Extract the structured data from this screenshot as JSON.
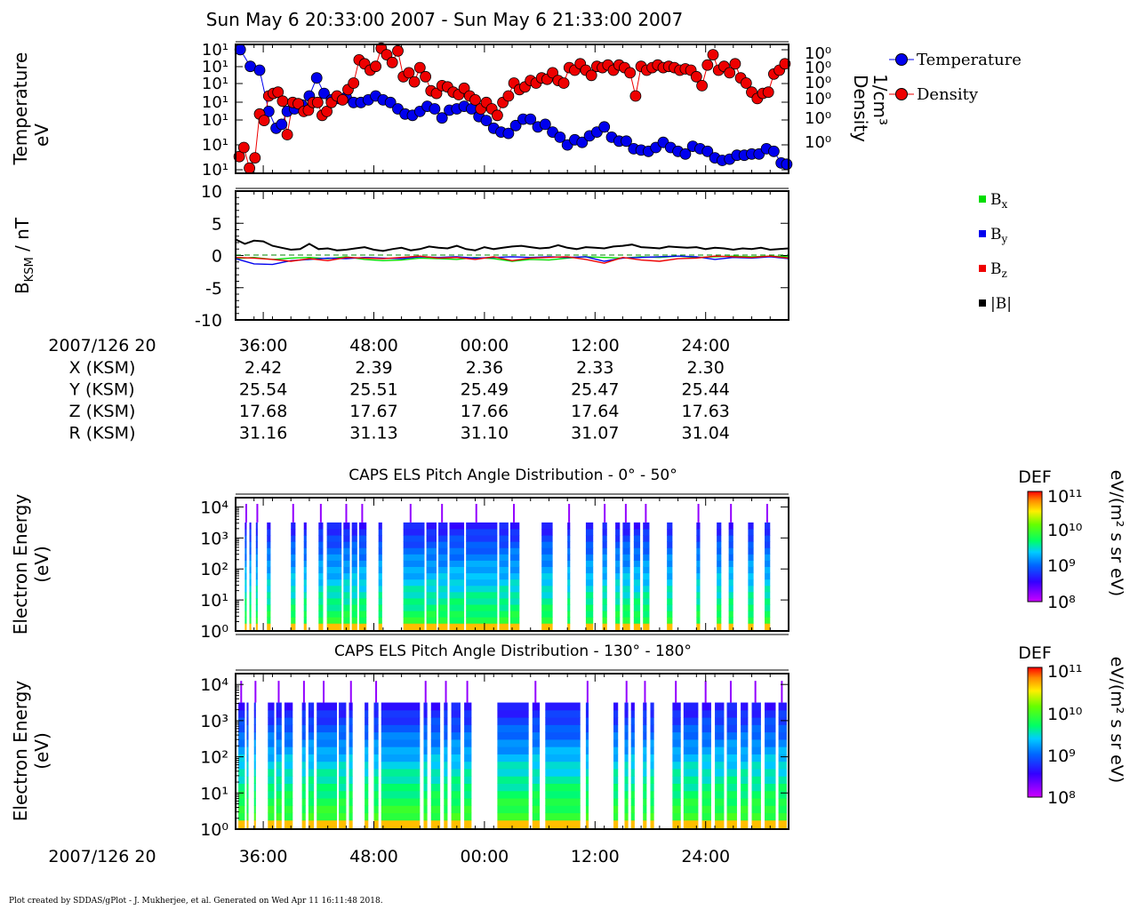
{
  "title": "Sun May 6 20:33:00 2007 - Sun May 6 21:33:00 2007",
  "footer": "Plot created by SDDAS/gPlot - J. Mukherjee, et al.  Generated on Wed Apr 11 16:11:48 2018.",
  "time_axis": {
    "date_label": "2007/126 20",
    "ticks": [
      "36:00",
      "48:00",
      "00:00",
      "12:00",
      "24:00"
    ],
    "tick_minutes": [
      3,
      15,
      27,
      39,
      51
    ],
    "range_minutes": [
      0,
      60
    ]
  },
  "ephemeris": {
    "rows": [
      {
        "label": "X (KSM)",
        "values": [
          "2.42",
          "2.39",
          "2.36",
          "2.33",
          "2.30"
        ]
      },
      {
        "label": "Y (KSM)",
        "values": [
          "25.54",
          "25.51",
          "25.49",
          "25.47",
          "25.44"
        ]
      },
      {
        "label": "Z (KSM)",
        "values": [
          "17.68",
          "17.67",
          "17.66",
          "17.64",
          "17.63"
        ]
      },
      {
        "label": "R (KSM)",
        "values": [
          "31.16",
          "31.13",
          "31.10",
          "31.07",
          "31.04"
        ]
      }
    ]
  },
  "colors": {
    "temperature": "#0000ee",
    "density": "#ee0000",
    "bx": "#00dd00",
    "by": "#0000ee",
    "bz": "#ee0000",
    "bmag": "#000000"
  },
  "chart_data": [
    {
      "type": "scatter",
      "ylabel_lines": [
        "Temperature",
        "eV"
      ],
      "y2label_lines": [
        "Density",
        "1/cm³"
      ],
      "y_tick_labels": [
        "10¹",
        "10¹",
        "10¹",
        "10¹",
        "10¹",
        "10¹",
        "10¹"
      ],
      "y2_tick_labels": [
        "10⁰",
        "10⁰",
        "10⁰",
        "10⁰",
        "10⁰",
        "10⁰"
      ],
      "ylim": [
        0,
        1
      ],
      "legend": [
        "Temperature",
        "Density"
      ],
      "series": [
        {
          "name": "Temperature",
          "x": [
            0.5,
            1.6,
            2.6,
            3.6,
            4.4,
            5.0,
            5.6,
            6.4,
            7.2,
            8.0,
            8.8,
            9.6,
            10.4,
            11.2,
            12.0,
            12.8,
            13.6,
            14.4,
            15.2,
            16.0,
            16.8,
            17.6,
            18.4,
            19.2,
            20.0,
            20.8,
            21.6,
            22.4,
            23.2,
            24.0,
            24.8,
            25.6,
            26.4,
            27.2,
            28.0,
            28.8,
            29.6,
            30.4,
            31.2,
            32.0,
            32.8,
            33.6,
            34.4,
            35.2,
            36.0,
            36.8,
            37.6,
            38.4,
            39.2,
            40.0,
            40.8,
            41.6,
            42.4,
            43.2,
            44.0,
            44.8,
            45.6,
            46.4,
            47.2,
            48.0,
            48.8,
            49.6,
            50.4,
            51.2,
            52.0,
            52.8,
            53.6,
            54.4,
            55.2,
            56.0,
            56.8,
            57.6,
            58.4,
            59.2,
            59.8
          ],
          "y": [
            0.96,
            0.83,
            0.8,
            0.48,
            0.35,
            0.38,
            0.48,
            0.5,
            0.53,
            0.6,
            0.74,
            0.62,
            0.57,
            0.58,
            0.59,
            0.55,
            0.55,
            0.57,
            0.6,
            0.57,
            0.55,
            0.5,
            0.46,
            0.45,
            0.48,
            0.52,
            0.5,
            0.43,
            0.49,
            0.5,
            0.52,
            0.5,
            0.44,
            0.41,
            0.35,
            0.32,
            0.31,
            0.37,
            0.42,
            0.42,
            0.36,
            0.38,
            0.32,
            0.28,
            0.22,
            0.26,
            0.24,
            0.29,
            0.32,
            0.36,
            0.28,
            0.25,
            0.25,
            0.19,
            0.18,
            0.17,
            0.2,
            0.24,
            0.2,
            0.17,
            0.15,
            0.21,
            0.19,
            0.17,
            0.12,
            0.1,
            0.11,
            0.14,
            0.14,
            0.15,
            0.15,
            0.19,
            0.17,
            0.08,
            0.07
          ]
        },
        {
          "name": "Density",
          "x": [
            0.4,
            0.9,
            1.5,
            2.1,
            2.6,
            3.1,
            3.6,
            4.1,
            4.6,
            5.1,
            5.6,
            6.2,
            6.8,
            7.4,
            7.9,
            8.4,
            8.9,
            9.4,
            9.9,
            10.4,
            11.0,
            11.6,
            12.2,
            12.8,
            13.4,
            14.0,
            14.6,
            15.2,
            15.8,
            16.4,
            17.0,
            17.6,
            18.2,
            18.8,
            19.4,
            20.0,
            20.6,
            21.2,
            21.8,
            22.4,
            23.0,
            23.6,
            24.2,
            24.8,
            25.4,
            26.0,
            26.6,
            27.2,
            27.8,
            28.4,
            29.0,
            29.6,
            30.2,
            30.8,
            31.4,
            32.0,
            32.6,
            33.2,
            33.8,
            34.4,
            35.0,
            35.6,
            36.2,
            36.8,
            37.4,
            38.0,
            38.6,
            39.2,
            39.8,
            40.4,
            41.0,
            41.6,
            42.2,
            42.8,
            43.4,
            44.0,
            44.6,
            45.2,
            45.8,
            46.4,
            47.0,
            47.6,
            48.2,
            48.8,
            49.4,
            50.0,
            50.6,
            51.2,
            51.8,
            52.4,
            53.0,
            53.6,
            54.2,
            54.8,
            55.4,
            56.0,
            56.6,
            57.2,
            57.8,
            58.4,
            59.0,
            59.6
          ],
          "y": [
            0.13,
            0.2,
            0.04,
            0.12,
            0.46,
            0.41,
            0.6,
            0.62,
            0.63,
            0.56,
            0.3,
            0.55,
            0.54,
            0.48,
            0.49,
            0.55,
            0.55,
            0.45,
            0.48,
            0.55,
            0.6,
            0.57,
            0.65,
            0.7,
            0.88,
            0.85,
            0.8,
            0.83,
            0.97,
            0.92,
            0.86,
            0.95,
            0.75,
            0.78,
            0.71,
            0.82,
            0.75,
            0.64,
            0.62,
            0.68,
            0.67,
            0.63,
            0.61,
            0.66,
            0.6,
            0.57,
            0.5,
            0.55,
            0.5,
            0.45,
            0.55,
            0.6,
            0.7,
            0.65,
            0.67,
            0.72,
            0.7,
            0.74,
            0.73,
            0.78,
            0.72,
            0.7,
            0.82,
            0.8,
            0.85,
            0.8,
            0.76,
            0.83,
            0.82,
            0.84,
            0.8,
            0.84,
            0.82,
            0.78,
            0.6,
            0.83,
            0.8,
            0.82,
            0.84,
            0.82,
            0.83,
            0.82,
            0.8,
            0.81,
            0.8,
            0.75,
            0.68,
            0.84,
            0.92,
            0.8,
            0.83,
            0.78,
            0.85,
            0.74,
            0.7,
            0.63,
            0.58,
            0.62,
            0.63,
            0.77,
            0.8,
            0.85
          ]
        }
      ]
    },
    {
      "type": "line",
      "ylabel_main": "B",
      "ylabel_sub": "KSM",
      "ylabel_rest": " / nT",
      "ylim": [
        -10,
        10
      ],
      "y_ticks": [
        -10,
        -5,
        0,
        5,
        10
      ],
      "legend": [
        "B",
        "B",
        "B",
        "|B|"
      ],
      "legend_subs": [
        "x",
        "y",
        "z",
        ""
      ],
      "series": [
        {
          "name": "Bx",
          "x": [
            0,
            2,
            4,
            6,
            8,
            10,
            12,
            14,
            16,
            18,
            20,
            22,
            24,
            26,
            28,
            30,
            32,
            34,
            36,
            38,
            40,
            42,
            44,
            46,
            48,
            50,
            52,
            54,
            56,
            58,
            60
          ],
          "y": [
            -0.5,
            -0.3,
            -0.6,
            -0.4,
            -0.3,
            -0.5,
            -0.2,
            -0.6,
            -0.8,
            -0.7,
            -0.4,
            -0.5,
            -0.6,
            -0.3,
            -0.5,
            -0.9,
            -0.6,
            -0.7,
            -0.4,
            -0.2,
            -0.3,
            -0.4,
            -0.2,
            -0.3,
            -0.1,
            -0.3,
            -0.2,
            -0.1,
            -0.2,
            -0.1,
            -0.2
          ]
        },
        {
          "name": "By",
          "x": [
            0,
            2,
            4,
            6,
            8,
            10,
            12,
            14,
            16,
            18,
            20,
            22,
            24,
            26,
            28,
            30,
            32,
            34,
            36,
            38,
            40,
            42,
            44,
            46,
            48,
            50,
            52,
            54,
            56,
            58,
            60
          ],
          "y": [
            -0.5,
            -1.3,
            -1.4,
            -0.8,
            -0.6,
            -0.4,
            -0.5,
            -0.3,
            -0.4,
            -0.5,
            -0.2,
            -0.3,
            -0.2,
            -0.4,
            -0.3,
            -0.2,
            -0.3,
            -0.2,
            -0.3,
            -0.2,
            -0.9,
            -0.4,
            -0.3,
            -0.2,
            -0.1,
            -0.2,
            -0.6,
            -0.3,
            -0.4,
            -0.2,
            -0.5
          ]
        },
        {
          "name": "Bz",
          "x": [
            0,
            2,
            4,
            6,
            8,
            10,
            12,
            14,
            16,
            18,
            20,
            22,
            24,
            26,
            28,
            30,
            32,
            34,
            36,
            38,
            40,
            42,
            44,
            46,
            48,
            50,
            52,
            54,
            56,
            58,
            60
          ],
          "y": [
            -0.3,
            -0.4,
            -0.6,
            -0.9,
            -0.5,
            -0.8,
            -0.3,
            -0.4,
            -0.5,
            -0.3,
            -0.1,
            -0.4,
            -0.3,
            -0.6,
            -0.2,
            -0.8,
            -0.4,
            -0.3,
            -0.2,
            -0.6,
            -1.2,
            -0.3,
            -0.7,
            -0.9,
            -0.5,
            -0.4,
            -0.1,
            -0.2,
            -0.3,
            -0.1,
            -0.4
          ]
        },
        {
          "name": "|B|",
          "x": [
            0,
            1,
            2,
            3,
            4,
            5,
            6,
            7,
            8,
            9,
            10,
            11,
            12,
            13,
            14,
            15,
            16,
            17,
            18,
            19,
            20,
            21,
            22,
            23,
            24,
            25,
            26,
            27,
            28,
            29,
            30,
            31,
            32,
            33,
            34,
            35,
            36,
            37,
            38,
            39,
            40,
            41,
            42,
            43,
            44,
            45,
            46,
            47,
            48,
            49,
            50,
            51,
            52,
            53,
            54,
            55,
            56,
            57,
            58,
            59,
            60
          ],
          "y": [
            2.5,
            1.8,
            2.3,
            2.2,
            1.5,
            1.2,
            0.9,
            1.0,
            1.8,
            1.0,
            1.1,
            0.8,
            0.9,
            1.1,
            1.3,
            0.9,
            0.7,
            1.0,
            1.2,
            0.8,
            1.0,
            1.4,
            1.2,
            1.1,
            1.5,
            1.0,
            0.8,
            1.3,
            1.0,
            1.2,
            1.4,
            1.5,
            1.3,
            1.1,
            1.2,
            1.6,
            1.2,
            1.0,
            1.3,
            1.2,
            1.1,
            1.4,
            1.5,
            1.7,
            1.3,
            1.2,
            1.1,
            1.4,
            1.3,
            1.2,
            1.3,
            1.0,
            1.2,
            1.1,
            0.9,
            1.1,
            1.0,
            1.2,
            0.9,
            1.0,
            1.1
          ]
        }
      ]
    },
    {
      "type": "heatmap",
      "title": "CAPS ELS Pitch Angle Distribution - 0° - 50°",
      "ylabel_lines": [
        "Electron Energy",
        "(eV)"
      ],
      "y_tick_labels": [
        "10⁰",
        "10¹",
        "10²",
        "10³",
        "10⁴"
      ],
      "ylim_log10": [
        0,
        4.3
      ],
      "active_intervals": [
        [
          1.0,
          1.2
        ],
        [
          1.5,
          1.7
        ],
        [
          2.2,
          2.4
        ],
        [
          3.4,
          3.8
        ],
        [
          6.0,
          6.5
        ],
        [
          7.4,
          7.7
        ],
        [
          9.0,
          9.5
        ],
        [
          9.9,
          11.5
        ],
        [
          11.7,
          12.4
        ],
        [
          12.6,
          13.2
        ],
        [
          13.4,
          14.2
        ],
        [
          15.5,
          15.9
        ],
        [
          18.2,
          20.5
        ],
        [
          20.7,
          21.8
        ],
        [
          22.0,
          23.0
        ],
        [
          23.2,
          24.8
        ],
        [
          25.0,
          28.4
        ],
        [
          28.6,
          29.6
        ],
        [
          29.8,
          30.8
        ],
        [
          33.2,
          34.4
        ],
        [
          36.0,
          36.3
        ],
        [
          38.0,
          38.8
        ],
        [
          39.8,
          40.3
        ],
        [
          41.2,
          41.7
        ],
        [
          42.0,
          42.8
        ],
        [
          43.2,
          43.9
        ],
        [
          44.2,
          44.9
        ],
        [
          46.8,
          47.4
        ],
        [
          50.0,
          50.4
        ],
        [
          52.2,
          52.7
        ],
        [
          53.5,
          54.0
        ],
        [
          55.6,
          56.2
        ],
        [
          57.4,
          58.0
        ]
      ],
      "spectrum_log10_flux": [
        9.9,
        9.6,
        9.3,
        9.0,
        8.6
      ],
      "colorbar_label": "DEF",
      "colorbar_unit": "eV/(m² s sr eV)",
      "colorbar_ticks": [
        "10¹¹",
        "10¹⁰",
        "10⁹",
        "10⁸"
      ]
    },
    {
      "type": "heatmap",
      "title": "CAPS ELS Pitch Angle Distribution - 130° - 180°",
      "ylabel_lines": [
        "Electron Energy",
        "(eV)"
      ],
      "y_tick_labels": [
        "10⁰",
        "10¹",
        "10²",
        "10³",
        "10⁴"
      ],
      "ylim_log10": [
        0,
        4.3
      ],
      "active_intervals": [
        [
          0.3,
          1.0
        ],
        [
          1.2,
          1.4
        ],
        [
          2.0,
          2.2
        ],
        [
          3.5,
          4.2
        ],
        [
          4.4,
          5.0
        ],
        [
          5.3,
          6.2
        ],
        [
          7.2,
          7.6
        ],
        [
          7.9,
          8.5
        ],
        [
          8.8,
          11.0
        ],
        [
          11.2,
          12.0
        ],
        [
          12.3,
          12.7
        ],
        [
          14.0,
          14.4
        ],
        [
          15.0,
          15.5
        ],
        [
          15.8,
          20.0
        ],
        [
          20.4,
          20.8
        ],
        [
          21.2,
          22.2
        ],
        [
          22.6,
          23.0
        ],
        [
          23.4,
          24.4
        ],
        [
          24.8,
          25.6
        ],
        [
          28.4,
          31.8
        ],
        [
          32.2,
          33.0
        ],
        [
          33.6,
          37.4
        ],
        [
          38.0,
          38.3
        ],
        [
          41.0,
          41.5
        ],
        [
          42.2,
          42.6
        ],
        [
          42.9,
          43.3
        ],
        [
          44.2,
          44.6
        ],
        [
          45.0,
          45.4
        ],
        [
          47.4,
          48.3
        ],
        [
          48.6,
          50.2
        ],
        [
          50.6,
          51.6
        ],
        [
          52.0,
          53.0
        ],
        [
          53.3,
          54.4
        ],
        [
          54.8,
          55.6
        ],
        [
          56.0,
          57.0
        ],
        [
          57.4,
          58.6
        ],
        [
          58.9,
          59.8
        ]
      ],
      "spectrum_log10_flux": [
        10.0,
        9.7,
        9.4,
        9.0,
        8.6
      ],
      "colorbar_label": "DEF",
      "colorbar_unit": "eV/(m² s sr eV)",
      "colorbar_ticks": [
        "10¹¹",
        "10¹⁰",
        "10⁹",
        "10⁸"
      ]
    }
  ]
}
